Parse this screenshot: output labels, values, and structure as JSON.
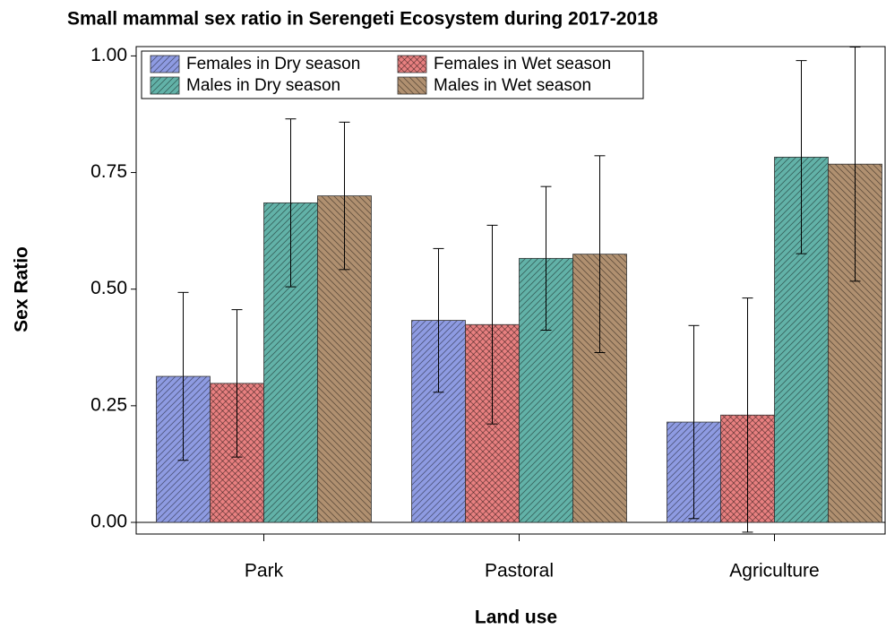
{
  "chart_data": {
    "type": "bar",
    "title": "Small mammal sex ratio in Serengeti Ecosystem during 2017-2018",
    "x_label": "Land use",
    "y_label": "Sex Ratio",
    "categories": [
      "Park",
      "Pastoral",
      "Agriculture"
    ],
    "series": [
      {
        "name": "Females in Dry season",
        "color": "#8e9be2",
        "hatch": "diagonal",
        "values": [
          0.313,
          0.433,
          0.215
        ],
        "errors": [
          0.18,
          0.154,
          0.207
        ]
      },
      {
        "name": "Females in Wet season",
        "color": "#e88080",
        "hatch": "cross",
        "values": [
          0.298,
          0.424,
          0.23
        ],
        "errors": [
          0.158,
          0.213,
          0.251
        ]
      },
      {
        "name": "Males in Dry season",
        "color": "#62b2a8",
        "hatch": "diagonal",
        "values": [
          0.685,
          0.566,
          0.783
        ],
        "errors": [
          0.18,
          0.154,
          0.207
        ]
      },
      {
        "name": "Males in Wet season",
        "color": "#b09070",
        "hatch": "back-diagonal",
        "values": [
          0.7,
          0.575,
          0.768
        ],
        "errors": [
          0.158,
          0.211,
          0.251
        ]
      }
    ],
    "ylim": [
      -0.025,
      1.02
    ],
    "yticks": [
      {
        "value": 0,
        "label": "0.00"
      },
      {
        "value": 0.25,
        "label": "0.25"
      },
      {
        "value": 0.5,
        "label": "0.50"
      },
      {
        "value": 0.75,
        "label": "0.75"
      },
      {
        "value": 1,
        "label": "1.00"
      }
    ],
    "legend": "upper left",
    "grid": false
  }
}
